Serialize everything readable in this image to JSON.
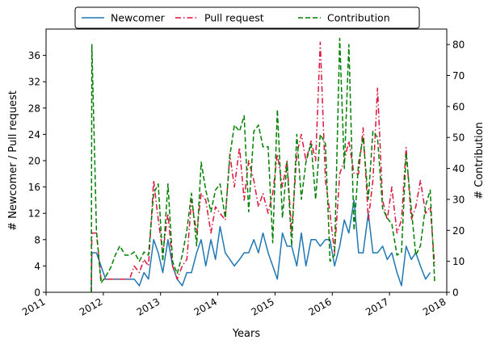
{
  "chart_data": {
    "type": "line",
    "title": "",
    "xlabel": "Years",
    "ylabel_left": "# Newcomer / Pull request",
    "ylabel_right": "# Contribution",
    "xlim": [
      2011.0,
      2018.0
    ],
    "ylim_left": [
      0,
      40
    ],
    "ylim_right": [
      0,
      85
    ],
    "x_ticks": [
      2011,
      2012,
      2013,
      2014,
      2015,
      2016,
      2017,
      2018
    ],
    "x_tick_labels": [
      "2011",
      "2012",
      "2013",
      "2014",
      "2015",
      "2016",
      "2017",
      "2018"
    ],
    "y_left_ticks": [
      0,
      4,
      8,
      12,
      16,
      20,
      24,
      28,
      32,
      36
    ],
    "y_left_tick_labels": [
      "0",
      "4",
      "8",
      "12",
      "16",
      "20",
      "24",
      "28",
      "32",
      "36"
    ],
    "y_right_ticks": [
      0,
      10,
      20,
      30,
      40,
      50,
      60,
      70,
      80
    ],
    "y_right_tick_labels": [
      "0",
      "10",
      "20",
      "30",
      "40",
      "50",
      "60",
      "70",
      "80"
    ],
    "grid": false,
    "legend": {
      "placement": "top-center",
      "ncol": 3
    },
    "series": [
      {
        "name": "Newcomer",
        "axis": "left",
        "color": "#1f77b4",
        "style": "solid",
        "points": [
          [
            2011.79,
            0
          ],
          [
            2011.8,
            6
          ],
          [
            2011.88,
            6
          ],
          [
            2011.96,
            4
          ],
          [
            2012.04,
            2
          ],
          [
            2012.13,
            2
          ],
          [
            2012.21,
            2
          ],
          [
            2012.29,
            2
          ],
          [
            2012.38,
            2
          ],
          [
            2012.46,
            2
          ],
          [
            2012.54,
            2
          ],
          [
            2012.63,
            1
          ],
          [
            2012.71,
            3
          ],
          [
            2012.79,
            2
          ],
          [
            2012.88,
            8
          ],
          [
            2012.96,
            6
          ],
          [
            2013.04,
            3
          ],
          [
            2013.13,
            8
          ],
          [
            2013.21,
            4
          ],
          [
            2013.29,
            2
          ],
          [
            2013.38,
            1
          ],
          [
            2013.46,
            3
          ],
          [
            2013.54,
            3
          ],
          [
            2013.63,
            6
          ],
          [
            2013.71,
            8
          ],
          [
            2013.79,
            4
          ],
          [
            2013.88,
            8
          ],
          [
            2013.96,
            5
          ],
          [
            2014.04,
            10
          ],
          [
            2014.13,
            6
          ],
          [
            2014.21,
            5
          ],
          [
            2014.29,
            4
          ],
          [
            2014.38,
            5
          ],
          [
            2014.46,
            6
          ],
          [
            2014.54,
            6
          ],
          [
            2014.63,
            8
          ],
          [
            2014.71,
            6
          ],
          [
            2014.79,
            9
          ],
          [
            2014.88,
            6
          ],
          [
            2014.96,
            4
          ],
          [
            2015.04,
            2
          ],
          [
            2015.13,
            9
          ],
          [
            2015.21,
            7
          ],
          [
            2015.29,
            7
          ],
          [
            2015.38,
            4
          ],
          [
            2015.46,
            9
          ],
          [
            2015.54,
            4
          ],
          [
            2015.63,
            8
          ],
          [
            2015.71,
            8
          ],
          [
            2015.79,
            7
          ],
          [
            2015.88,
            8
          ],
          [
            2015.96,
            8
          ],
          [
            2016.04,
            4
          ],
          [
            2016.13,
            7
          ],
          [
            2016.21,
            11
          ],
          [
            2016.29,
            9
          ],
          [
            2016.38,
            14
          ],
          [
            2016.46,
            6
          ],
          [
            2016.54,
            6
          ],
          [
            2016.63,
            12
          ],
          [
            2016.71,
            6
          ],
          [
            2016.79,
            6
          ],
          [
            2016.88,
            7
          ],
          [
            2016.96,
            5
          ],
          [
            2017.04,
            6
          ],
          [
            2017.13,
            3
          ],
          [
            2017.21,
            1
          ],
          [
            2017.29,
            7
          ],
          [
            2017.38,
            5
          ],
          [
            2017.46,
            6
          ],
          [
            2017.54,
            4
          ],
          [
            2017.63,
            2
          ],
          [
            2017.71,
            3
          ]
        ]
      },
      {
        "name": "Pull request",
        "axis": "left",
        "color": "#dc143c",
        "style": "dashdot",
        "points": [
          [
            2011.79,
            0
          ],
          [
            2011.8,
            9
          ],
          [
            2011.88,
            9
          ],
          [
            2011.96,
            2
          ],
          [
            2012.04,
            2
          ],
          [
            2012.13,
            2
          ],
          [
            2012.21,
            2
          ],
          [
            2012.29,
            2
          ],
          [
            2012.38,
            2
          ],
          [
            2012.46,
            2
          ],
          [
            2012.54,
            4
          ],
          [
            2012.63,
            3
          ],
          [
            2012.71,
            5
          ],
          [
            2012.79,
            4
          ],
          [
            2012.88,
            17
          ],
          [
            2012.96,
            11
          ],
          [
            2013.04,
            6
          ],
          [
            2013.13,
            12
          ],
          [
            2013.21,
            4
          ],
          [
            2013.29,
            2
          ],
          [
            2013.38,
            4
          ],
          [
            2013.46,
            5
          ],
          [
            2013.54,
            14
          ],
          [
            2013.63,
            9
          ],
          [
            2013.71,
            15
          ],
          [
            2013.79,
            14
          ],
          [
            2013.88,
            9
          ],
          [
            2013.96,
            13
          ],
          [
            2014.04,
            12
          ],
          [
            2014.13,
            11
          ],
          [
            2014.21,
            21
          ],
          [
            2014.29,
            16
          ],
          [
            2014.38,
            22
          ],
          [
            2014.46,
            14
          ],
          [
            2014.54,
            20
          ],
          [
            2014.63,
            17
          ],
          [
            2014.71,
            13
          ],
          [
            2014.79,
            15
          ],
          [
            2014.88,
            12
          ],
          [
            2014.96,
            15
          ],
          [
            2015.04,
            21
          ],
          [
            2015.13,
            16
          ],
          [
            2015.21,
            20
          ],
          [
            2015.29,
            9
          ],
          [
            2015.38,
            21
          ],
          [
            2015.46,
            24
          ],
          [
            2015.54,
            20
          ],
          [
            2015.63,
            23
          ],
          [
            2015.71,
            20
          ],
          [
            2015.79,
            38
          ],
          [
            2015.88,
            17
          ],
          [
            2015.96,
            12
          ],
          [
            2016.04,
            6
          ],
          [
            2016.13,
            18
          ],
          [
            2016.21,
            20
          ],
          [
            2016.29,
            23
          ],
          [
            2016.38,
            18
          ],
          [
            2016.46,
            18
          ],
          [
            2016.54,
            25
          ],
          [
            2016.63,
            11
          ],
          [
            2016.71,
            17
          ],
          [
            2016.79,
            31
          ],
          [
            2016.88,
            14
          ],
          [
            2016.96,
            11
          ],
          [
            2017.04,
            16
          ],
          [
            2017.13,
            9
          ],
          [
            2017.21,
            11
          ],
          [
            2017.29,
            22
          ],
          [
            2017.38,
            11
          ],
          [
            2017.46,
            13
          ],
          [
            2017.54,
            17
          ],
          [
            2017.63,
            12
          ],
          [
            2017.71,
            13
          ],
          [
            2017.79,
            4
          ]
        ]
      },
      {
        "name": "Contribution",
        "axis": "right",
        "color": "#008000",
        "style": "dashed",
        "points": [
          [
            2011.79,
            0
          ],
          [
            2011.8,
            80
          ],
          [
            2011.88,
            20
          ],
          [
            2011.96,
            3
          ],
          [
            2012.04,
            5
          ],
          [
            2012.13,
            8
          ],
          [
            2012.21,
            12
          ],
          [
            2012.29,
            15
          ],
          [
            2012.38,
            12
          ],
          [
            2012.46,
            12
          ],
          [
            2012.54,
            13
          ],
          [
            2012.63,
            10
          ],
          [
            2012.71,
            13
          ],
          [
            2012.79,
            12
          ],
          [
            2012.88,
            32
          ],
          [
            2012.96,
            35
          ],
          [
            2013.04,
            10
          ],
          [
            2013.13,
            35
          ],
          [
            2013.21,
            10
          ],
          [
            2013.29,
            6
          ],
          [
            2013.38,
            12
          ],
          [
            2013.46,
            20
          ],
          [
            2013.54,
            32
          ],
          [
            2013.63,
            15
          ],
          [
            2013.71,
            42
          ],
          [
            2013.79,
            33
          ],
          [
            2013.88,
            26
          ],
          [
            2013.96,
            33
          ],
          [
            2014.04,
            35
          ],
          [
            2014.13,
            24
          ],
          [
            2014.21,
            44
          ],
          [
            2014.29,
            54
          ],
          [
            2014.38,
            52
          ],
          [
            2014.46,
            57
          ],
          [
            2014.54,
            26
          ],
          [
            2014.63,
            52
          ],
          [
            2014.71,
            54
          ],
          [
            2014.79,
            47
          ],
          [
            2014.88,
            47
          ],
          [
            2014.96,
            16
          ],
          [
            2015.04,
            59
          ],
          [
            2015.13,
            24
          ],
          [
            2015.21,
            42
          ],
          [
            2015.29,
            15
          ],
          [
            2015.38,
            51
          ],
          [
            2015.46,
            30
          ],
          [
            2015.54,
            42
          ],
          [
            2015.63,
            48
          ],
          [
            2015.71,
            30
          ],
          [
            2015.79,
            51
          ],
          [
            2015.88,
            48
          ],
          [
            2015.96,
            10
          ],
          [
            2016.04,
            12
          ],
          [
            2016.13,
            82
          ],
          [
            2016.21,
            40
          ],
          [
            2016.29,
            80
          ],
          [
            2016.38,
            20
          ],
          [
            2016.46,
            42
          ],
          [
            2016.54,
            50
          ],
          [
            2016.63,
            30
          ],
          [
            2016.71,
            52
          ],
          [
            2016.79,
            50
          ],
          [
            2016.88,
            27
          ],
          [
            2016.96,
            24
          ],
          [
            2017.04,
            22
          ],
          [
            2017.13,
            12
          ],
          [
            2017.21,
            13
          ],
          [
            2017.29,
            45
          ],
          [
            2017.38,
            27
          ],
          [
            2017.46,
            12
          ],
          [
            2017.54,
            15
          ],
          [
            2017.63,
            28
          ],
          [
            2017.71,
            33
          ],
          [
            2017.79,
            3
          ]
        ]
      }
    ]
  }
}
